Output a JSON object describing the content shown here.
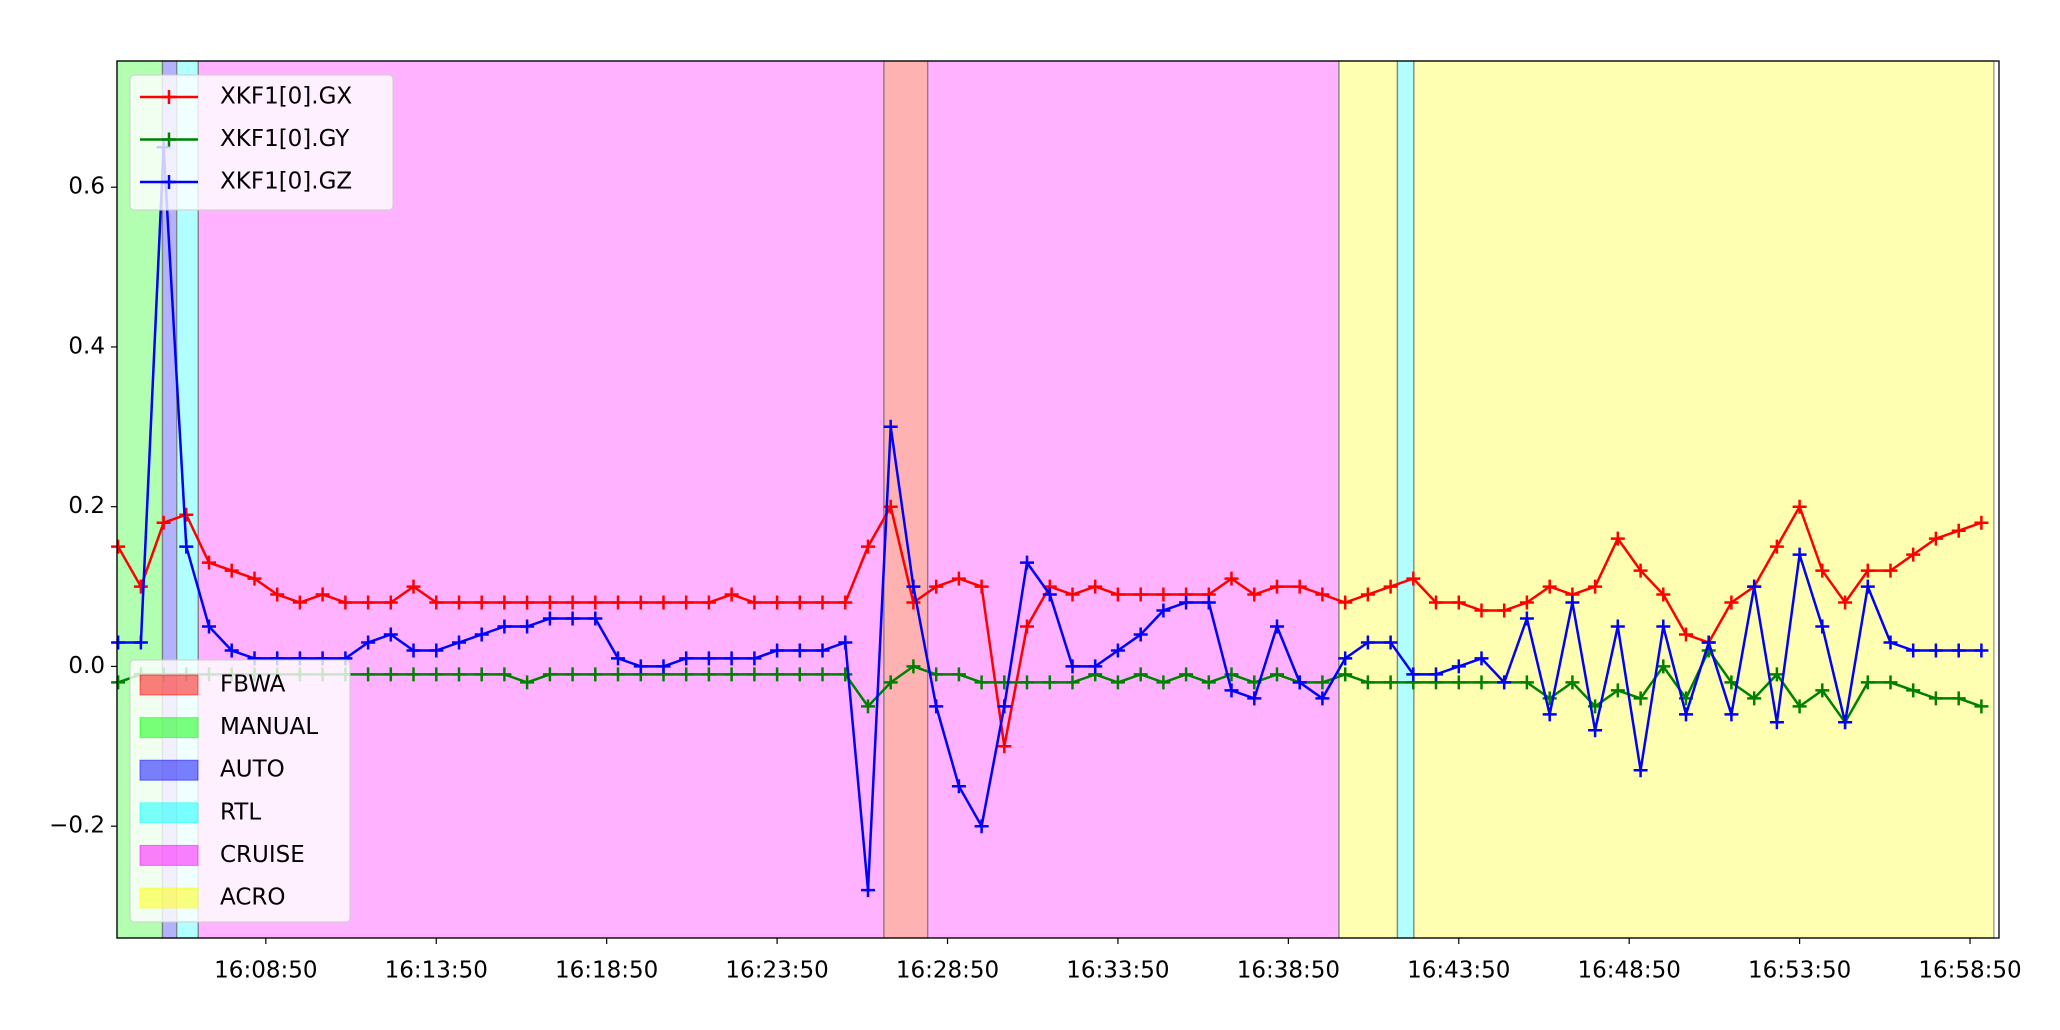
{
  "chart_data": {
    "type": "line",
    "xlim": [
      "16:04:28",
      "16:59:41"
    ],
    "xticks": [
      "16:08:50",
      "16:13:50",
      "16:18:50",
      "16:23:50",
      "16:28:50",
      "16:33:50",
      "16:38:50",
      "16:43:50",
      "16:48:50",
      "16:53:50",
      "16:58:50"
    ],
    "ylim": [
      -0.34,
      0.758
    ],
    "yticks": [
      {
        "value": -0.2,
        "label": "−0.2"
      },
      {
        "value": 0,
        "label": "0.0"
      },
      0.2,
      0.4,
      0.6
    ],
    "legend": "upper left",
    "mode_legend_position": "lower left",
    "mode_legend": [
      {
        "name": "FBWA",
        "color": "#ff0000"
      },
      {
        "name": "MANUAL",
        "color": "#00ff00"
      },
      {
        "name": "AUTO",
        "color": "#0000ff"
      },
      {
        "name": "RTL",
        "color": "#00ffff"
      },
      {
        "name": "CRUISE",
        "color": "#ff00ff"
      },
      {
        "name": "ACRO",
        "color": "#ffff00"
      }
    ],
    "mode_spans": [
      {
        "mode": "MANUAL",
        "start": "16:04:28",
        "end": "16:05:48"
      },
      {
        "mode": "AUTO",
        "start": "16:05:48",
        "end": "16:06:13"
      },
      {
        "mode": "RTL",
        "start": "16:06:13",
        "end": "16:06:51"
      },
      {
        "mode": "CRUISE",
        "start": "16:06:51",
        "end": "16:26:58"
      },
      {
        "mode": "FBWA",
        "start": "16:26:58",
        "end": "16:28:15"
      },
      {
        "mode": "CRUISE",
        "start": "16:28:15",
        "end": "16:40:19"
      },
      {
        "mode": "ACRO",
        "start": "16:40:19",
        "end": "16:42:02"
      },
      {
        "mode": "RTL",
        "start": "16:42:02",
        "end": "16:42:31"
      },
      {
        "mode": "ACRO",
        "start": "16:42:31",
        "end": "16:59:32"
      }
    ],
    "x": [
      "16:04:30",
      "16:05:10",
      "16:05:50",
      "16:06:30",
      "16:07:10",
      "16:07:50",
      "16:08:30",
      "16:09:10",
      "16:09:50",
      "16:10:30",
      "16:11:10",
      "16:11:50",
      "16:12:30",
      "16:13:10",
      "16:13:50",
      "16:14:30",
      "16:15:10",
      "16:15:50",
      "16:16:30",
      "16:17:10",
      "16:17:50",
      "16:18:30",
      "16:19:10",
      "16:19:50",
      "16:20:30",
      "16:21:10",
      "16:21:50",
      "16:22:30",
      "16:23:10",
      "16:23:50",
      "16:24:30",
      "16:25:10",
      "16:25:50",
      "16:26:30",
      "16:27:10",
      "16:27:50",
      "16:28:30",
      "16:29:10",
      "16:29:50",
      "16:30:30",
      "16:31:10",
      "16:31:50",
      "16:32:30",
      "16:33:10",
      "16:33:50",
      "16:34:30",
      "16:35:10",
      "16:35:50",
      "16:36:30",
      "16:37:10",
      "16:37:50",
      "16:38:30",
      "16:39:10",
      "16:39:50",
      "16:40:30",
      "16:41:10",
      "16:41:50",
      "16:42:30",
      "16:43:10",
      "16:43:50",
      "16:44:30",
      "16:45:10",
      "16:45:50",
      "16:46:30",
      "16:47:10",
      "16:47:50",
      "16:48:30",
      "16:49:10",
      "16:49:50",
      "16:50:30",
      "16:51:10",
      "16:51:50",
      "16:52:30",
      "16:53:10",
      "16:53:50",
      "16:54:30",
      "16:55:10",
      "16:55:50",
      "16:56:30",
      "16:57:10",
      "16:57:50",
      "16:58:30",
      "16:59:10"
    ],
    "series": [
      {
        "name": "XKF1[0].GX",
        "color": "#ff0000",
        "values": [
          0.15,
          0.1,
          0.18,
          0.19,
          0.13,
          0.12,
          0.11,
          0.09,
          0.08,
          0.09,
          0.08,
          0.08,
          0.08,
          0.1,
          0.08,
          0.08,
          0.08,
          0.08,
          0.08,
          0.08,
          0.08,
          0.08,
          0.08,
          0.08,
          0.08,
          0.08,
          0.08,
          0.09,
          0.08,
          0.08,
          0.08,
          0.08,
          0.08,
          0.15,
          0.2,
          0.08,
          0.1,
          0.11,
          0.1,
          -0.1,
          0.05,
          0.1,
          0.09,
          0.1,
          0.09,
          0.09,
          0.09,
          0.09,
          0.09,
          0.11,
          0.09,
          0.1,
          0.1,
          0.09,
          0.08,
          0.09,
          0.1,
          0.11,
          0.08,
          0.08,
          0.07,
          0.07,
          0.08,
          0.1,
          0.09,
          0.1,
          0.16,
          0.12,
          0.09,
          0.04,
          0.03,
          0.08,
          0.1,
          0.15,
          0.2,
          0.12,
          0.08,
          0.12,
          0.12,
          0.14,
          0.16,
          0.17,
          0.18
        ]
      },
      {
        "name": "XKF1[0].GY",
        "color": "#008000",
        "values": [
          -0.02,
          -0.01,
          -0.01,
          -0.01,
          -0.01,
          -0.01,
          -0.01,
          -0.01,
          -0.01,
          -0.01,
          -0.01,
          -0.01,
          -0.01,
          -0.01,
          -0.01,
          -0.01,
          -0.01,
          -0.01,
          -0.02,
          -0.01,
          -0.01,
          -0.01,
          -0.01,
          -0.01,
          -0.01,
          -0.01,
          -0.01,
          -0.01,
          -0.01,
          -0.01,
          -0.01,
          -0.01,
          -0.01,
          -0.05,
          -0.02,
          0.0,
          -0.01,
          -0.01,
          -0.02,
          -0.02,
          -0.02,
          -0.02,
          -0.02,
          -0.01,
          -0.02,
          -0.01,
          -0.02,
          -0.01,
          -0.02,
          -0.01,
          -0.02,
          -0.01,
          -0.02,
          -0.02,
          -0.01,
          -0.02,
          -0.02,
          -0.02,
          -0.02,
          -0.02,
          -0.02,
          -0.02,
          -0.02,
          -0.04,
          -0.02,
          -0.05,
          -0.03,
          -0.04,
          0.0,
          -0.04,
          0.02,
          -0.02,
          -0.04,
          -0.01,
          -0.05,
          -0.03,
          -0.07,
          -0.02,
          -0.02,
          -0.03,
          -0.04,
          -0.04,
          -0.05
        ]
      },
      {
        "name": "XKF1[0].GZ",
        "color": "#0000ff",
        "values": [
          0.03,
          0.03,
          0.65,
          0.15,
          0.05,
          0.02,
          0.01,
          0.01,
          0.01,
          0.01,
          0.01,
          0.03,
          0.04,
          0.02,
          0.02,
          0.03,
          0.04,
          0.05,
          0.05,
          0.06,
          0.06,
          0.06,
          0.01,
          0.0,
          0.0,
          0.01,
          0.01,
          0.01,
          0.01,
          0.02,
          0.02,
          0.02,
          0.03,
          -0.28,
          0.3,
          0.1,
          -0.05,
          -0.15,
          -0.2,
          -0.05,
          0.13,
          0.09,
          0.0,
          0.0,
          0.02,
          0.04,
          0.07,
          0.08,
          0.08,
          -0.03,
          -0.04,
          0.05,
          -0.02,
          -0.04,
          0.01,
          0.03,
          0.03,
          -0.01,
          -0.01,
          0.0,
          0.01,
          -0.02,
          0.06,
          -0.06,
          0.08,
          -0.08,
          0.05,
          -0.13,
          0.05,
          -0.06,
          0.03,
          -0.06,
          0.1,
          -0.07,
          0.14,
          0.05,
          -0.07,
          0.1,
          0.03,
          0.02,
          0.02,
          0.02,
          0.02
        ]
      }
    ]
  }
}
